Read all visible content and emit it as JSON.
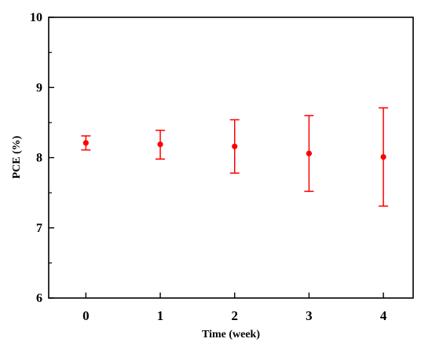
{
  "chart_data": {
    "type": "scatter",
    "xlabel": "Time (week)",
    "ylabel": "PCE (%)",
    "xlim": [
      -0.5,
      4.4
    ],
    "ylim": [
      6,
      10
    ],
    "x_ticks": [
      0,
      1,
      2,
      3,
      4
    ],
    "y_ticks": [
      6,
      7,
      8,
      9,
      10
    ],
    "grid": false,
    "series": [
      {
        "color": "#ff0000",
        "points": [
          {
            "x": 0,
            "y": 8.21,
            "err_low": 8.11,
            "err_high": 8.31
          },
          {
            "x": 1,
            "y": 8.19,
            "err_low": 7.98,
            "err_high": 8.39
          },
          {
            "x": 2,
            "y": 8.16,
            "err_low": 7.78,
            "err_high": 8.54
          },
          {
            "x": 3,
            "y": 8.06,
            "err_low": 7.52,
            "err_high": 8.6
          },
          {
            "x": 4,
            "y": 8.01,
            "err_low": 7.31,
            "err_high": 8.71
          }
        ]
      }
    ]
  }
}
